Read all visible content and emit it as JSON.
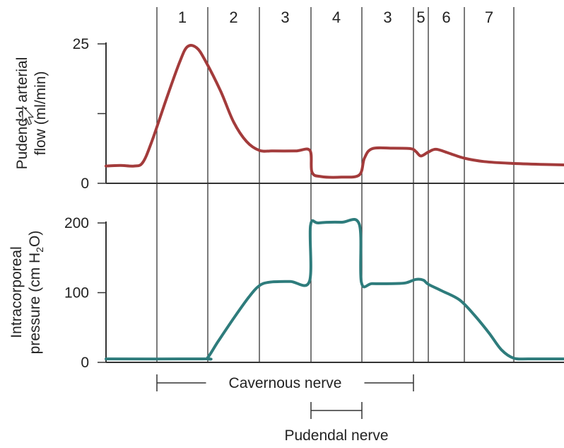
{
  "chart_data": [
    {
      "type": "line",
      "title": "",
      "ylabel_line1": "Pudendal arterial",
      "ylabel_line2": "flow (ml/min)",
      "ylim": [
        0,
        25
      ],
      "yticks": [
        {
          "value": 0,
          "label": "0"
        },
        {
          "value": 12.5,
          "label": ""
        },
        {
          "value": 25,
          "label": "25"
        }
      ],
      "color": "#a33b3b",
      "series": [
        {
          "points": [
            [
              0,
              3.1
            ],
            [
              0.28,
              3.2
            ],
            [
              0.55,
              3.1
            ],
            [
              0.72,
              3.7
            ],
            [
              0.9,
              7.5
            ],
            [
              1.2,
              15.5
            ],
            [
              1.45,
              21.8
            ],
            [
              1.6,
              24.5
            ],
            [
              1.78,
              24.3
            ],
            [
              1.95,
              22
            ],
            [
              2.25,
              16.5
            ],
            [
              2.5,
              11
            ],
            [
              2.75,
              7.5
            ],
            [
              3.0,
              5.9
            ],
            [
              3.25,
              5.8
            ],
            [
              3.7,
              5.8
            ],
            [
              3.98,
              5.9
            ],
            [
              4.02,
              2
            ],
            [
              4.2,
              1.2
            ],
            [
              4.6,
              1.1
            ],
            [
              4.95,
              1.5
            ],
            [
              5.05,
              4.5
            ],
            [
              5.2,
              6.2
            ],
            [
              5.6,
              6.3
            ],
            [
              5.95,
              6.2
            ],
            [
              6.05,
              5.7
            ],
            [
              6.15,
              4.9
            ],
            [
              6.3,
              5.6
            ],
            [
              6.45,
              6.1
            ],
            [
              6.7,
              5.4
            ],
            [
              7.0,
              4.5
            ],
            [
              7.4,
              3.9
            ],
            [
              7.9,
              3.6
            ],
            [
              8.5,
              3.4
            ],
            [
              8.95,
              3.3
            ]
          ]
        }
      ]
    },
    {
      "type": "line",
      "title": "",
      "ylabel_line1": "Intracorporeal",
      "ylabel_line2_pre": "pressure (cm H",
      "ylabel_line2_sub": "2",
      "ylabel_line2_post": "O)",
      "ylim": [
        0,
        200
      ],
      "yticks": [
        {
          "value": 0,
          "label": "0"
        },
        {
          "value": 100,
          "label": "100"
        },
        {
          "value": 200,
          "label": "200"
        }
      ],
      "color": "#2e7c7c",
      "series": [
        {
          "points": [
            [
              0,
              5
            ],
            [
              1.9,
              5
            ],
            [
              2.0,
              7
            ],
            [
              2.2,
              30
            ],
            [
              2.5,
              63
            ],
            [
              2.8,
              94
            ],
            [
              3.0,
              110
            ],
            [
              3.2,
              115
            ],
            [
              3.6,
              116
            ],
            [
              3.97,
              116
            ],
            [
              3.99,
              196
            ],
            [
              4.15,
              200
            ],
            [
              4.6,
              201
            ],
            [
              4.95,
              198
            ],
            [
              4.99,
              115
            ],
            [
              5.2,
              113
            ],
            [
              5.6,
              113
            ],
            [
              5.85,
              114
            ],
            [
              6.05,
              119
            ],
            [
              6.2,
              118
            ],
            [
              6.3,
              112
            ],
            [
              6.55,
              103
            ],
            [
              6.9,
              90
            ],
            [
              7.2,
              68
            ],
            [
              7.5,
              42
            ],
            [
              7.75,
              18
            ],
            [
              8.0,
              6
            ],
            [
              8.3,
              5
            ],
            [
              8.95,
              5
            ]
          ]
        }
      ]
    }
  ],
  "phase_boundaries": [
    1,
    2,
    3,
    4,
    5,
    6,
    6.3,
    7,
    8
  ],
  "phases": [
    {
      "label": "1",
      "start": 1,
      "end": 2
    },
    {
      "label": "2",
      "start": 2,
      "end": 3
    },
    {
      "label": "3",
      "start": 3,
      "end": 4
    },
    {
      "label": "4",
      "start": 4,
      "end": 5
    },
    {
      "label": "3",
      "start": 5,
      "end": 6
    },
    {
      "label": "5",
      "start": 6,
      "end": 6.3
    },
    {
      "label": "6",
      "start": 6.3,
      "end": 7
    },
    {
      "label": "7",
      "start": 7,
      "end": 8
    }
  ],
  "stimulus_bars": [
    {
      "label": "Cavernous nerve",
      "start": 1,
      "end": 6
    },
    {
      "label": "Pudendal nerve",
      "start": 4,
      "end": 5
    }
  ]
}
